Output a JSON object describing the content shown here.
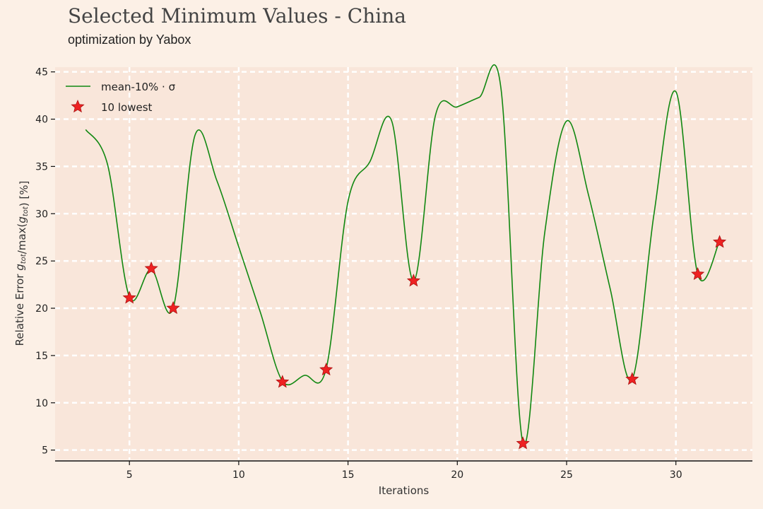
{
  "title": "Selected Minimum Values - China",
  "subtitle": "optimization by Yabox",
  "chart_data": {
    "type": "line",
    "xlabel": "Iterations",
    "ylabel": "Relative Error g_tot/max(g_tot) [%]",
    "xlim": [
      1.6,
      33.5
    ],
    "ylim": [
      4,
      45.5
    ],
    "x_ticks": [
      5,
      10,
      15,
      20,
      25,
      30
    ],
    "y_ticks": [
      5,
      10,
      15,
      20,
      25,
      30,
      35,
      40,
      45
    ],
    "grid": true,
    "legend_position": "top-left",
    "colors": {
      "line": "#118811",
      "marker": "#ee2222",
      "background": "#fcf0e6",
      "plot_background": "#f9e6da",
      "grid": "#ffffff"
    },
    "series": [
      {
        "name": "mean-10% · σ",
        "x": [
          3,
          4,
          5,
          6,
          7,
          8,
          9,
          10,
          11,
          12,
          13,
          14,
          15,
          16,
          17,
          18,
          19,
          20,
          21,
          22,
          23,
          24,
          25,
          26,
          27,
          28,
          29,
          30,
          31,
          32
        ],
        "y": [
          38.9,
          35.2,
          21.2,
          24.1,
          20.0,
          38.3,
          33.5,
          26.5,
          19.5,
          12.3,
          12.9,
          13.6,
          31.3,
          35.5,
          39.8,
          22.9,
          40.4,
          41.3,
          42.3,
          43.2,
          5.8,
          28.0,
          39.8,
          32.0,
          22.0,
          12.5,
          30.0,
          42.9,
          23.6,
          27.1
        ]
      },
      {
        "name": "10 lowest",
        "x": [
          5,
          6,
          7,
          12,
          14,
          18,
          23,
          28,
          31,
          32
        ],
        "y": [
          21.1,
          24.2,
          20.0,
          12.2,
          13.5,
          22.9,
          5.7,
          12.5,
          23.6,
          27.0
        ]
      }
    ]
  }
}
